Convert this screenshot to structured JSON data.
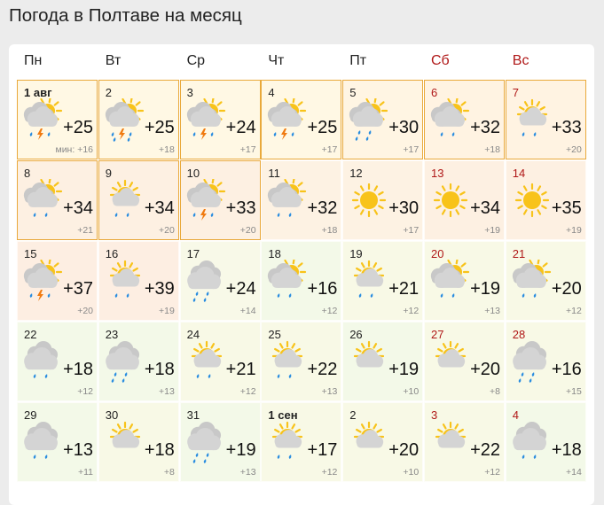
{
  "title": "Погода в Полтаве на месяц",
  "weekdays": [
    {
      "label": "Пн",
      "weekend": false
    },
    {
      "label": "Вт",
      "weekend": false
    },
    {
      "label": "Ср",
      "weekend": false
    },
    {
      "label": "Чт",
      "weekend": false
    },
    {
      "label": "Пт",
      "weekend": false
    },
    {
      "label": "Сб",
      "weekend": true
    },
    {
      "label": "Вс",
      "weekend": true
    }
  ],
  "colors": {
    "weekend": "#b01818",
    "highlight_border": "#e9a93b",
    "sun": "#f8c31a",
    "cloud": "#d4d4d4",
    "rain": "#2a8de0",
    "bolt": "#f07a10"
  },
  "days": [
    {
      "date": "1 авг",
      "bold": true,
      "icon": "partly-cloudy",
      "precip": "thunder",
      "max": "+25",
      "min": "мин: +16",
      "hl": true,
      "bg": "#fff8e4"
    },
    {
      "date": "2",
      "icon": "partly-cloudy",
      "precip": "thunder-heavy",
      "max": "+25",
      "min": "+18",
      "hl": true,
      "bg": "#fff8e4"
    },
    {
      "date": "3",
      "icon": "partly-cloudy",
      "precip": "thunder",
      "max": "+24",
      "min": "+17",
      "hl": true,
      "bg": "#fff8e4"
    },
    {
      "date": "4",
      "icon": "partly-cloudy",
      "precip": "thunder",
      "max": "+25",
      "min": "+17",
      "hl": true,
      "bg": "#fff8e4"
    },
    {
      "date": "5",
      "icon": "partly-cloudy",
      "precip": "rain-heavy",
      "max": "+30",
      "min": "+17",
      "hl": true,
      "bg": "#fff5e3"
    },
    {
      "date": "6",
      "icon": "partly-cloudy",
      "precip": "rain",
      "max": "+32",
      "min": "+18",
      "hl": true,
      "bg": "#fff3e2"
    },
    {
      "date": "7",
      "icon": "sun-cloud",
      "precip": "rain",
      "max": "+33",
      "min": "+20",
      "hl": true,
      "bg": "#fff3e2"
    },
    {
      "date": "8",
      "icon": "partly-cloudy",
      "precip": "rain",
      "max": "+34",
      "min": "+21",
      "hl": true,
      "bg": "#fdf0e2"
    },
    {
      "date": "9",
      "icon": "sun-cloud",
      "precip": "rain",
      "max": "+34",
      "min": "+20",
      "hl": true,
      "bg": "#fdf0e2"
    },
    {
      "date": "10",
      "icon": "partly-cloudy",
      "precip": "thunder",
      "max": "+33",
      "min": "+20",
      "hl": true,
      "bg": "#fdf0e2"
    },
    {
      "date": "11",
      "icon": "partly-cloudy",
      "precip": "rain",
      "max": "+32",
      "min": "+18",
      "bg": "#fdf2e3"
    },
    {
      "date": "12",
      "icon": "sun",
      "precip": "none",
      "max": "+30",
      "min": "+17",
      "bg": "#fdf2e3"
    },
    {
      "date": "13",
      "icon": "sun",
      "precip": "none",
      "max": "+34",
      "min": "+19",
      "bg": "#fdf0e2"
    },
    {
      "date": "14",
      "icon": "sun",
      "precip": "none",
      "max": "+35",
      "min": "+19",
      "bg": "#fdf0e2"
    },
    {
      "date": "15",
      "icon": "partly-cloudy",
      "precip": "thunder",
      "max": "+37",
      "min": "+20",
      "bg": "#fdeee2"
    },
    {
      "date": "16",
      "icon": "sun-cloud",
      "precip": "rain",
      "max": "+39",
      "min": "+19",
      "bg": "#fdeee2"
    },
    {
      "date": "17",
      "icon": "overcast",
      "precip": "rain-heavy",
      "max": "+24",
      "min": "+14",
      "bg": "#f8f9e8"
    },
    {
      "date": "18",
      "icon": "partly-cloudy",
      "precip": "rain",
      "max": "+16",
      "min": "+12",
      "bg": "#f3f9e8"
    },
    {
      "date": "19",
      "icon": "sun-cloud",
      "precip": "rain",
      "max": "+21",
      "min": "+12",
      "bg": "#f8f9e6"
    },
    {
      "date": "20",
      "icon": "partly-cloudy",
      "precip": "rain",
      "max": "+19",
      "min": "+13",
      "bg": "#f8f9e6"
    },
    {
      "date": "21",
      "icon": "partly-cloudy",
      "precip": "rain",
      "max": "+20",
      "min": "+12",
      "bg": "#f8f9e6"
    },
    {
      "date": "22",
      "icon": "overcast",
      "precip": "rain",
      "max": "+18",
      "min": "+12",
      "bg": "#f3f9e8"
    },
    {
      "date": "23",
      "icon": "overcast",
      "precip": "rain-heavy",
      "max": "+18",
      "min": "+13",
      "bg": "#f3f9e8"
    },
    {
      "date": "24",
      "icon": "sun-cloud",
      "precip": "rain",
      "max": "+21",
      "min": "+12",
      "bg": "#f8f9e6"
    },
    {
      "date": "25",
      "icon": "sun-cloud",
      "precip": "rain",
      "max": "+22",
      "min": "+13",
      "bg": "#f8f9e6"
    },
    {
      "date": "26",
      "icon": "sun-cloud",
      "precip": "none",
      "max": "+19",
      "min": "+10",
      "bg": "#f3f9e8"
    },
    {
      "date": "27",
      "icon": "sun-cloud",
      "precip": "none",
      "max": "+20",
      "min": "+8",
      "bg": "#f8f9e6"
    },
    {
      "date": "28",
      "icon": "overcast",
      "precip": "rain-heavy",
      "max": "+16",
      "min": "+15",
      "bg": "#f8f9e6"
    },
    {
      "date": "29",
      "icon": "overcast",
      "precip": "rain",
      "max": "+13",
      "min": "+11",
      "bg": "#f3f9e8"
    },
    {
      "date": "30",
      "icon": "sun-cloud",
      "precip": "none",
      "max": "+18",
      "min": "+8",
      "bg": "#f8f9e6"
    },
    {
      "date": "31",
      "icon": "overcast",
      "precip": "rain-heavy",
      "max": "+19",
      "min": "+13",
      "bg": "#f3f9e8"
    },
    {
      "date": "1 сен",
      "bold": true,
      "icon": "sun-cloud",
      "precip": "rain",
      "max": "+17",
      "min": "+12",
      "bg": "#f8f9e6"
    },
    {
      "date": "2",
      "icon": "sun-cloud",
      "precip": "none",
      "max": "+20",
      "min": "+10",
      "bg": "#f8f9e6"
    },
    {
      "date": "3",
      "icon": "sun-cloud",
      "precip": "none",
      "max": "+22",
      "min": "+12",
      "bg": "#f8f9e6"
    },
    {
      "date": "4",
      "icon": "overcast",
      "precip": "rain",
      "max": "+18",
      "min": "+14",
      "bg": "#f3f9e8"
    }
  ]
}
